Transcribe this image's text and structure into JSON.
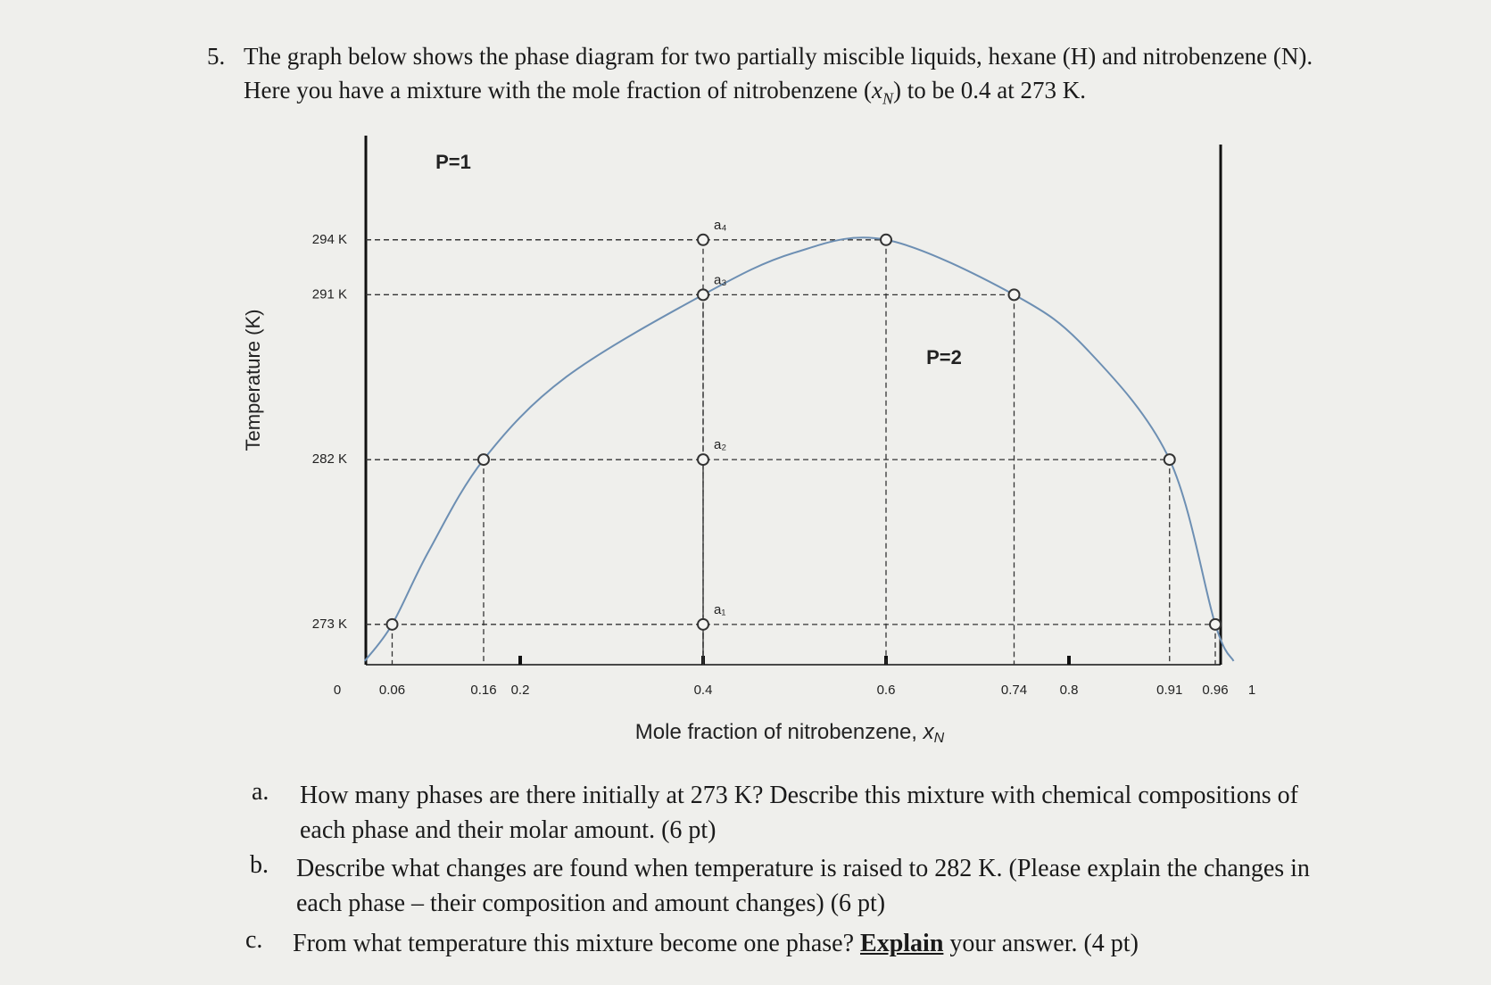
{
  "question": {
    "number": "5.",
    "text_before": "The graph below shows the phase diagram for two partially miscible liquids, hexane (H) and nitrobenzene (N). Here you have a mixture with the mole fraction of nitrobenzene (",
    "symbol": "x",
    "subscript": "N",
    "text_after": ") to be 0.4 at 273 K."
  },
  "chart_data": {
    "type": "line",
    "ylabel": "Temperature (K)",
    "xlabel": "Mole fraction of nitrobenzene, ",
    "xlabel_symbol": "x",
    "xlabel_subscript": "N",
    "annotations": [
      "P=1",
      "P=2"
    ],
    "xlim": [
      0,
      1
    ],
    "xticks": [
      0,
      0.06,
      0.16,
      0.2,
      0.4,
      0.6,
      0.74,
      0.8,
      0.91,
      0.96,
      1
    ],
    "ylim": [
      270.8,
      299.3
    ],
    "yticks": [
      {
        "value": 273,
        "label": "273 K"
      },
      {
        "value": 282,
        "label": "282 K"
      },
      {
        "value": 291,
        "label": "291 K"
      },
      {
        "value": 294,
        "label": "294 K"
      }
    ],
    "curve": {
      "color": "#6d8fb3",
      "x": [
        0.03,
        0.06,
        0.1,
        0.16,
        0.25,
        0.4,
        0.5,
        0.6,
        0.74,
        0.82,
        0.91,
        0.96,
        0.98
      ],
      "y": [
        271,
        273,
        277,
        282,
        286.5,
        291,
        293.3,
        294,
        291,
        288,
        282,
        273,
        271
      ]
    },
    "points": {
      "x": [
        0.06,
        0.16,
        0.4,
        0.4,
        0.4,
        0.4,
        0.6,
        0.74,
        0.91,
        0.96
      ],
      "y": [
        273,
        282,
        273,
        282,
        291,
        294,
        294,
        291,
        282,
        273
      ],
      "labels": [
        null,
        null,
        "a₁",
        "a₂",
        "a₃",
        "a₄",
        null,
        null,
        null,
        null
      ]
    },
    "guides": true
  },
  "subquestions": [
    {
      "marker": "a.",
      "text": "How many phases are there initially at 273 K? Describe this mixture with chemical compositions of each phase and their molar amount. (6 pt)"
    },
    {
      "marker": "b.",
      "text": "Describe what changes are found when temperature is raised to 282 K. (Please explain the changes in each phase – their composition and amount changes) (6 pt)"
    },
    {
      "marker": "c.",
      "text_before": "From what temperature this mixture become one phase? ",
      "emphasis": "Explain",
      "text_after": " your answer. (4 pt)"
    }
  ]
}
